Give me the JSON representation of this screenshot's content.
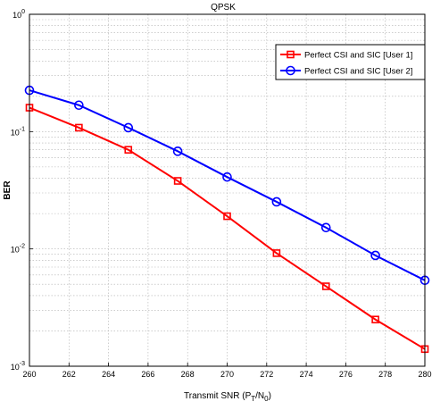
{
  "chart_data": {
    "type": "line",
    "title": "QPSK",
    "xlabel": "Transmit SNR (P",
    "xlabel_sub1": "T",
    "xlabel_mid": "/N",
    "xlabel_sub2": "0",
    "xlabel_end": ")",
    "ylabel": "BER",
    "xlim": [
      260,
      280
    ],
    "ylim": [
      0.001,
      1
    ],
    "yscale": "log",
    "grid": true,
    "legend_position": "top-right",
    "x_ticks": [
      "260",
      "262",
      "264",
      "266",
      "268",
      "270",
      "272",
      "274",
      "276",
      "278",
      "280"
    ],
    "y_ticks": [
      {
        "base": "10",
        "exp": "0"
      },
      {
        "base": "10",
        "exp": "-1"
      },
      {
        "base": "10",
        "exp": "-2"
      },
      {
        "base": "10",
        "exp": "-3"
      }
    ],
    "x": [
      260,
      262.5,
      265,
      267.5,
      270,
      272.5,
      275,
      277.5,
      280
    ],
    "series": [
      {
        "name": "Perfect CSI and SIC [User 1]",
        "color": "#ff0000",
        "marker": "square",
        "values": [
          0.16,
          0.108,
          0.07,
          0.038,
          0.019,
          0.0092,
          0.0048,
          0.0025,
          0.0014
        ]
      },
      {
        "name": "Perfect CSI and SIC [User 2]",
        "color": "#0000ff",
        "marker": "circle",
        "values": [
          0.225,
          0.168,
          0.108,
          0.068,
          0.041,
          0.0252,
          0.0152,
          0.0088,
          0.0054
        ]
      }
    ]
  }
}
